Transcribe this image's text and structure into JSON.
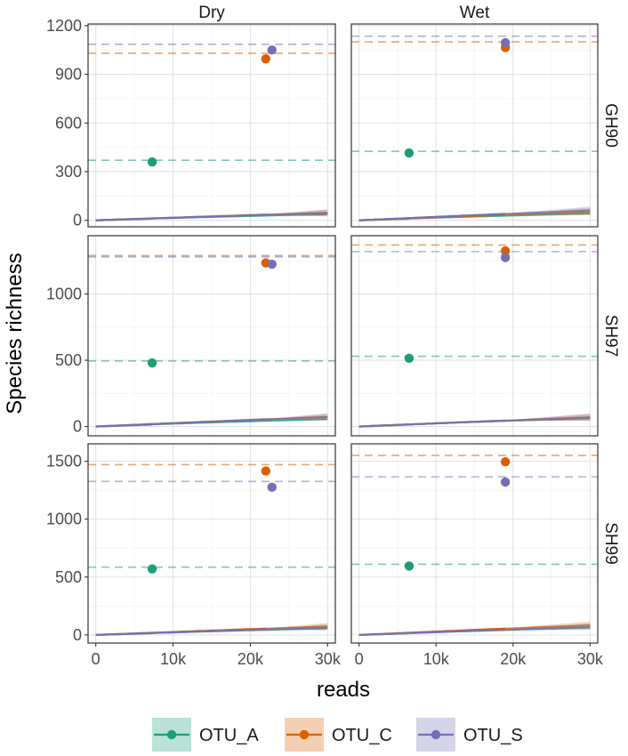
{
  "chart_data": {
    "type": "line",
    "facet_columns": [
      "Dry",
      "Wet"
    ],
    "facet_rows": [
      "GH90",
      "SH97",
      "SH99"
    ],
    "xlabel": "reads",
    "ylabel": "Species richness",
    "xlim": [
      -1000,
      31000
    ],
    "x_ticks": [
      0,
      10000,
      20000,
      30000
    ],
    "x_tick_labels": [
      "0",
      "10k",
      "20k",
      "30k"
    ],
    "y_axes": {
      "GH90": {
        "ylim": [
          -40,
          1210
        ],
        "ticks": [
          0,
          300,
          600,
          900,
          1200
        ],
        "tick_labels": [
          "0",
          "300",
          "600",
          "900",
          "1200"
        ]
      },
      "SH97": {
        "ylim": [
          -70,
          1440
        ],
        "ticks": [
          0,
          500,
          1000
        ],
        "tick_labels": [
          "0",
          "500",
          "1000"
        ]
      },
      "SH99": {
        "ylim": [
          -70,
          1650
        ],
        "ticks": [
          0,
          500,
          1000,
          1500
        ],
        "tick_labels": [
          "0",
          "500",
          "1000",
          "1500"
        ]
      }
    },
    "series": [
      {
        "name": "OTU_A",
        "color": "#1b9e77"
      },
      {
        "name": "OTU_C",
        "color": "#d95f02"
      },
      {
        "name": "OTU_S",
        "color": "#7570b3"
      }
    ],
    "panels": [
      {
        "row": "GH90",
        "col": "Dry",
        "curves": [
          {
            "series": "OTU_A",
            "asymptote": 370,
            "observed_reads": 7300,
            "observed_richness": 360
          },
          {
            "series": "OTU_C",
            "asymptote": 1030,
            "observed_reads": 22000,
            "observed_richness": 995
          },
          {
            "series": "OTU_S",
            "asymptote": 1085,
            "observed_reads": 22800,
            "observed_richness": 1050
          }
        ]
      },
      {
        "row": "GH90",
        "col": "Wet",
        "curves": [
          {
            "series": "OTU_A",
            "asymptote": 425,
            "observed_reads": 6500,
            "observed_richness": 415
          },
          {
            "series": "OTU_C",
            "asymptote": 1100,
            "observed_reads": 19000,
            "observed_richness": 1065
          },
          {
            "series": "OTU_S",
            "asymptote": 1135,
            "observed_reads": 19000,
            "observed_richness": 1095
          }
        ]
      },
      {
        "row": "SH97",
        "col": "Dry",
        "curves": [
          {
            "series": "OTU_A",
            "asymptote": 495,
            "observed_reads": 7300,
            "observed_richness": 480
          },
          {
            "series": "OTU_C",
            "asymptote": 1290,
            "observed_reads": 22000,
            "observed_richness": 1235
          },
          {
            "series": "OTU_S",
            "asymptote": 1280,
            "observed_reads": 22800,
            "observed_richness": 1225
          }
        ]
      },
      {
        "row": "SH97",
        "col": "Wet",
        "curves": [
          {
            "series": "OTU_A",
            "asymptote": 530,
            "observed_reads": 6500,
            "observed_richness": 515
          },
          {
            "series": "OTU_C",
            "asymptote": 1370,
            "observed_reads": 19000,
            "observed_richness": 1325
          },
          {
            "series": "OTU_S",
            "asymptote": 1320,
            "observed_reads": 19000,
            "observed_richness": 1275
          }
        ]
      },
      {
        "row": "SH99",
        "col": "Dry",
        "curves": [
          {
            "series": "OTU_A",
            "asymptote": 585,
            "observed_reads": 7300,
            "observed_richness": 570
          },
          {
            "series": "OTU_C",
            "asymptote": 1470,
            "observed_reads": 22000,
            "observed_richness": 1415
          },
          {
            "series": "OTU_S",
            "asymptote": 1325,
            "observed_reads": 22800,
            "observed_richness": 1275
          }
        ]
      },
      {
        "row": "SH99",
        "col": "Wet",
        "curves": [
          {
            "series": "OTU_A",
            "asymptote": 610,
            "observed_reads": 6500,
            "observed_richness": 595
          },
          {
            "series": "OTU_C",
            "asymptote": 1550,
            "observed_reads": 19000,
            "observed_richness": 1495
          },
          {
            "series": "OTU_S",
            "asymptote": 1365,
            "observed_reads": 19000,
            "observed_richness": 1320
          }
        ]
      }
    ],
    "legend_position": "bottom",
    "grid": true
  }
}
